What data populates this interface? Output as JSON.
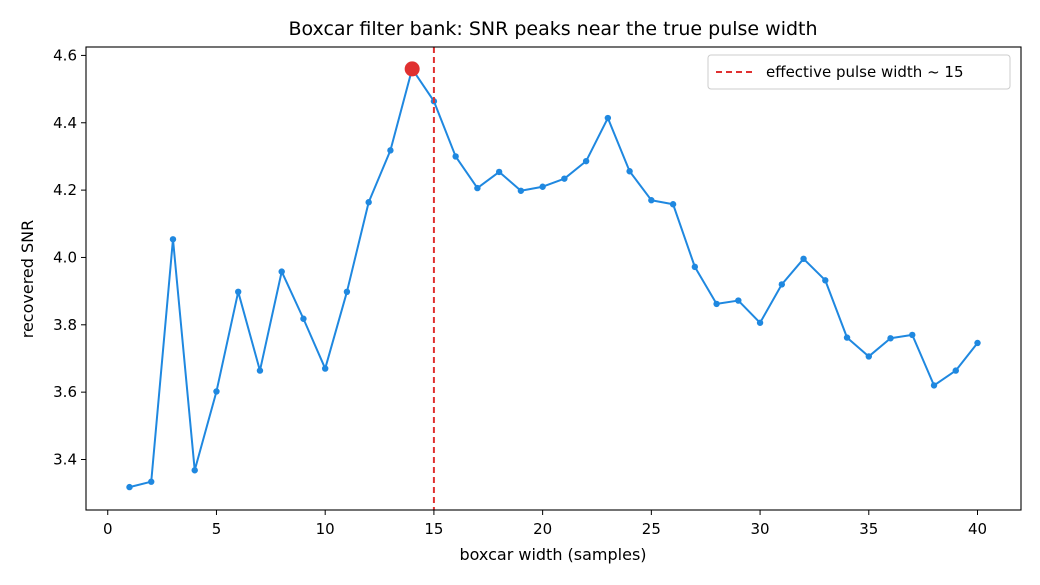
{
  "chart_data": {
    "type": "line",
    "title": "Boxcar filter bank: SNR peaks near the true pulse width",
    "xlabel": "boxcar width (samples)",
    "ylabel": "recovered SNR",
    "xlim": [
      -1,
      42
    ],
    "ylim": [
      3.25,
      4.625
    ],
    "xticks": [
      0,
      5,
      10,
      15,
      20,
      25,
      30,
      35,
      40
    ],
    "yticks": [
      3.4,
      3.6,
      3.8,
      4.0,
      4.2,
      4.4,
      4.6
    ],
    "ytick_labels": [
      "3.4",
      "3.6",
      "3.8",
      "4.0",
      "4.2",
      "4.4",
      "4.6"
    ],
    "grid": false,
    "legend_position": "top-right",
    "series": [
      {
        "color": "#1f88e0",
        "x": [
          1,
          2,
          3,
          4,
          5,
          6,
          7,
          8,
          9,
          10,
          11,
          12,
          13,
          14,
          15,
          16,
          17,
          18,
          19,
          20,
          21,
          22,
          23,
          24,
          25,
          26,
          27,
          28,
          29,
          30,
          31,
          32,
          33,
          34,
          35,
          36,
          37,
          38,
          39,
          40
        ],
        "values": [
          3.318,
          3.334,
          4.054,
          3.368,
          3.602,
          3.898,
          3.664,
          3.958,
          3.818,
          3.67,
          3.898,
          4.164,
          4.318,
          4.56,
          4.464,
          4.3,
          4.206,
          4.254,
          4.198,
          4.21,
          4.234,
          4.286,
          4.414,
          4.256,
          4.17,
          4.158,
          3.972,
          3.862,
          3.872,
          3.806,
          3.92,
          3.996,
          3.932,
          3.762,
          3.706,
          3.76,
          3.77,
          3.62,
          3.664,
          3.746
        ]
      }
    ],
    "peak_marker": {
      "x": 14,
      "y": 4.56,
      "color": "#e03030"
    },
    "reference_line": {
      "x": 15,
      "color": "#e03030",
      "label": "effective pulse width ~ 15"
    }
  }
}
